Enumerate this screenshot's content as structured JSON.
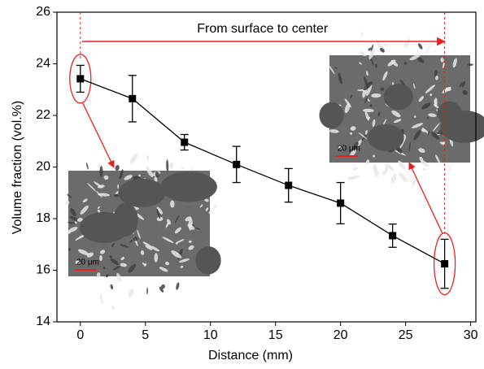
{
  "chart_data": {
    "type": "line",
    "x_label": "Distance (mm)",
    "y_label": "Volume fraction (vol.%)",
    "x": [
      0,
      4,
      8,
      12,
      16,
      20,
      24,
      28
    ],
    "values": [
      23.42,
      22.65,
      20.96,
      20.1,
      19.29,
      18.6,
      17.34,
      16.25
    ],
    "errors": [
      0.52,
      0.9,
      0.3,
      0.7,
      0.65,
      0.8,
      0.45,
      0.95
    ],
    "color": "#000000",
    "xlim": [
      -1.8,
      30.4
    ],
    "ylim": [
      14,
      26
    ],
    "xticks": [
      0,
      5,
      10,
      15,
      20,
      25,
      30
    ],
    "yticks": [
      14,
      16,
      18,
      20,
      22,
      24,
      26
    ],
    "annotation": "From surface to center",
    "annotation_color": "#e8211d",
    "inset_labels": [
      "20 μm",
      "20 μm"
    ]
  }
}
